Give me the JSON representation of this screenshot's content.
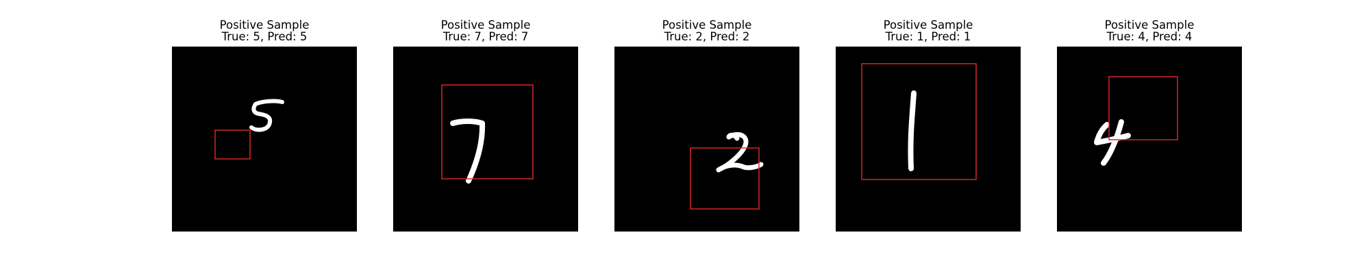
{
  "panels": [
    {
      "heading": "Positive Sample",
      "caption": "True: 5, Pred: 5",
      "true_label": 5,
      "predicted_label": 5,
      "digit": "5",
      "box_color": "#d62728",
      "image_background": "#000000",
      "stroke_color": "#ffffff"
    },
    {
      "heading": "Positive Sample",
      "caption": "True: 7, Pred: 7",
      "true_label": 7,
      "predicted_label": 7,
      "digit": "7",
      "box_color": "#d62728",
      "image_background": "#000000",
      "stroke_color": "#ffffff"
    },
    {
      "heading": "Positive Sample",
      "caption": "True: 2, Pred: 2",
      "true_label": 2,
      "predicted_label": 2,
      "digit": "2",
      "box_color": "#d62728",
      "image_background": "#000000",
      "stroke_color": "#ffffff"
    },
    {
      "heading": "Positive Sample",
      "caption": "True: 1, Pred: 1",
      "true_label": 1,
      "predicted_label": 1,
      "digit": "1",
      "box_color": "#d62728",
      "image_background": "#000000",
      "stroke_color": "#ffffff"
    },
    {
      "heading": "Positive Sample",
      "caption": "True: 4, Pred: 4",
      "true_label": 4,
      "predicted_label": 4,
      "digit": "4",
      "box_color": "#d62728",
      "image_background": "#000000",
      "stroke_color": "#ffffff"
    }
  ]
}
